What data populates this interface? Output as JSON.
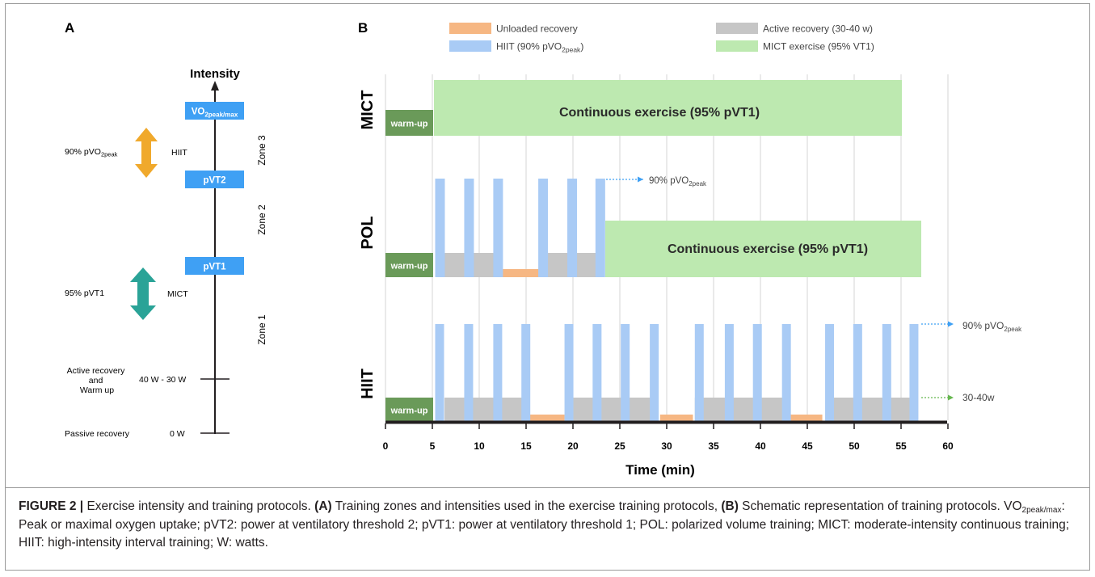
{
  "panel_a": {
    "label": "A",
    "axis_title": "Intensity",
    "markers": [
      {
        "text": "VO",
        "sub": "2peak/max"
      },
      {
        "text": "pVT2",
        "sub": ""
      },
      {
        "text": "pVT1",
        "sub": ""
      }
    ],
    "zones": [
      "Zone 3",
      "Zone 2",
      "Zone 1"
    ],
    "left_labels": {
      "hiit_intensity": {
        "text": "90% pVO",
        "sub": "2peak"
      },
      "mict_intensity": "95% pVT1",
      "active_recovery": [
        "Active recovery",
        "and",
        "Warm up"
      ],
      "passive_recovery": "Passive recovery"
    },
    "arrow_labels": {
      "hiit": "HIIT",
      "mict": "MICT"
    },
    "tick_labels": {
      "active": "40 W - 30 W",
      "passive": "0 W"
    },
    "colors": {
      "marker": "#3fa0f4",
      "hiit_arrow": "#f0a92c",
      "mict_arrow": "#2aa397"
    }
  },
  "panel_b": {
    "label": "B",
    "legend": [
      {
        "label": "Unloaded  recovery",
        "color": "#f6b783"
      },
      {
        "label": "Active recovery (30-40 w)",
        "color": "#c6c6c6"
      },
      {
        "label": "HIIT (90% pVO",
        "sub": "2peak",
        "tail": ")",
        "color": "#a9cbf5"
      },
      {
        "label": "MICT exercise (95% VT1)",
        "color": "#bde9b0"
      }
    ],
    "rows": [
      {
        "name": "MICT",
        "warmup": "warm-up",
        "continuous": "Continuous exercise (95% pVT1)"
      },
      {
        "name": "POL",
        "warmup": "warm-up",
        "continuous": "Continuous exercise (95% pVT1)",
        "annotation": {
          "text": "90% pVO",
          "sub": "2peak"
        }
      },
      {
        "name": "HIIT",
        "warmup": "warm-up",
        "annotation": {
          "text": "90% pVO",
          "sub": "2peak"
        },
        "annotation2": "30-40w"
      }
    ],
    "x_axis_title": "Time (min)",
    "x_ticks": [
      "0",
      "5",
      "10",
      "15",
      "20",
      "25",
      "30",
      "35",
      "40",
      "45",
      "50",
      "55",
      "60"
    ],
    "colors": {
      "warmup": "#6a9a59",
      "hiit": "#a9cbf5",
      "active": "#c6c6c6",
      "unloaded": "#f6b783",
      "mict": "#bde9b0"
    }
  },
  "caption": {
    "figure_label": "FIGURE 2 |",
    "intro": " Exercise intensity and training protocols. ",
    "a_label": "(A)",
    "a_text": " Training zones and intensities used in the exercise training protocols, ",
    "b_label": "(B)",
    "b_text": " Schematic representation of training protocols. VO",
    "b_sub": "2peak/max",
    "rest": ": Peak or maximal oxygen uptake; pVT2: power at ventilatory threshold 2; pVT1: power at ventilatory threshold 1; POL: polarized volume training; MICT: moderate-intensity continuous training; HIIT: high-intensity interval training; W: watts."
  }
}
